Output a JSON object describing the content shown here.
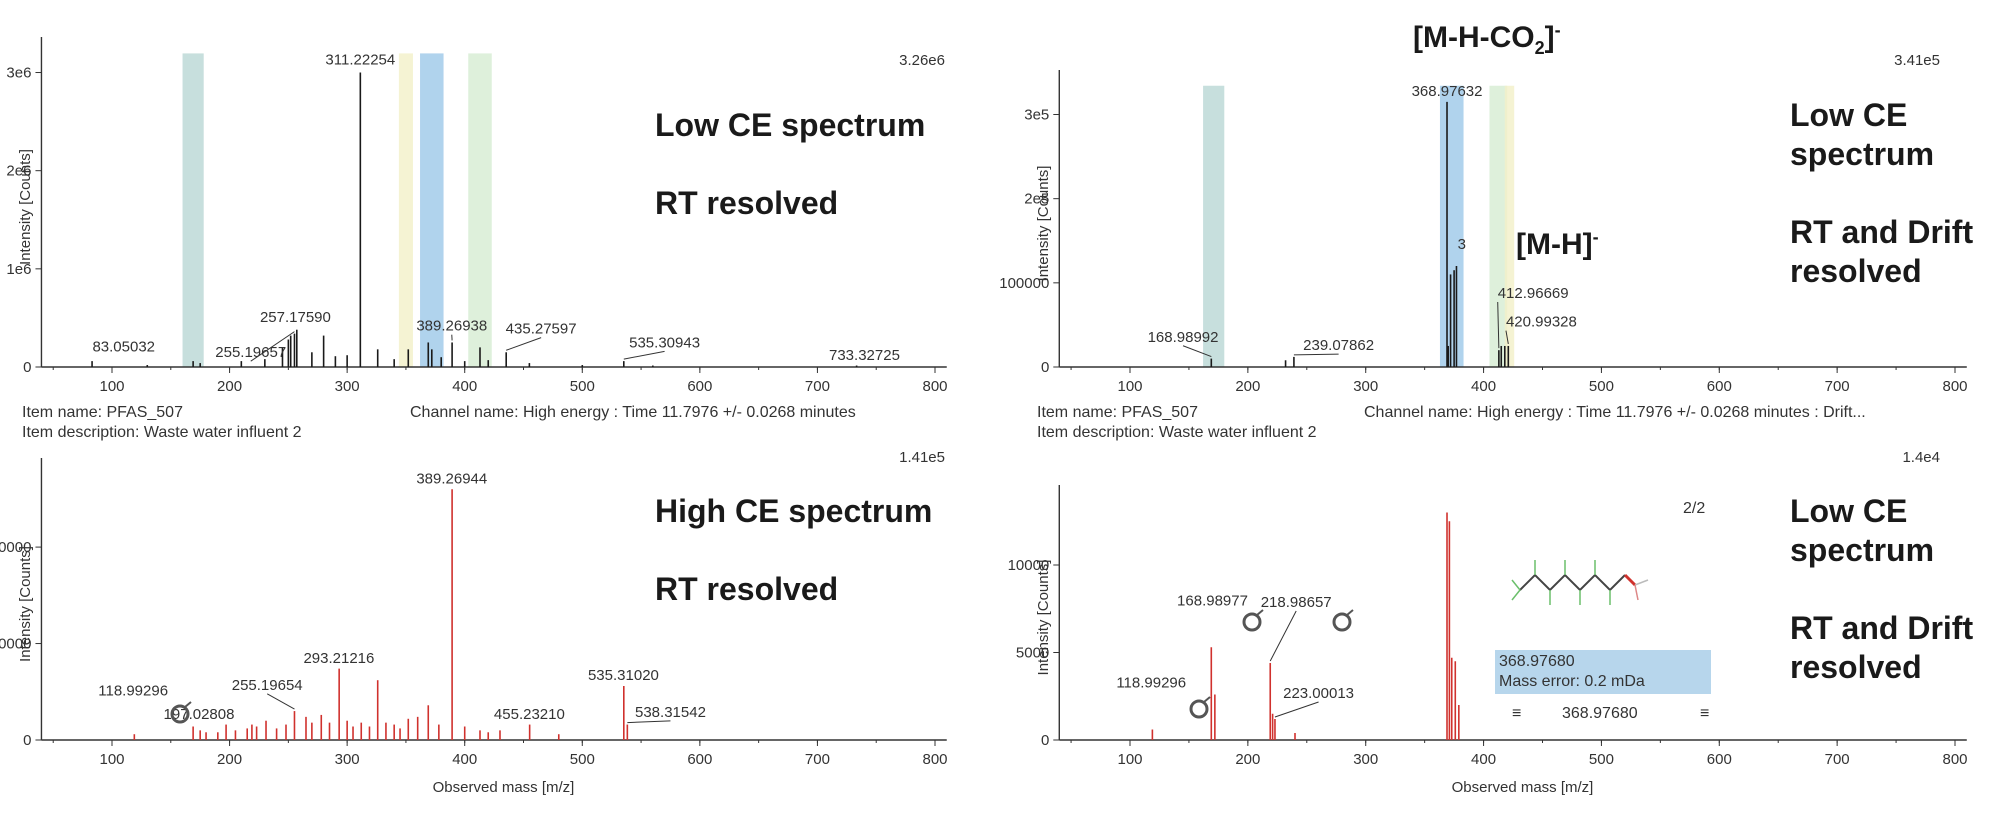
{
  "annotations": {
    "m_h_co2": "[M-H-CO",
    "m_h_co2_sub": "2",
    "m_h_co2_tail": "]",
    "m_h_co2_sup": "-",
    "m_h": "[M-H]",
    "m_h_sup": "-"
  },
  "meta": {
    "left_item_name": "Item name: PFAS_507",
    "left_item_description": "Item description: Waste water influent 2",
    "left_channel": "Channel name: High energy : Time 11.7976 +/- 0.0268 minutes",
    "right_item_name": "Item name: PFAS_507",
    "right_item_description": "Item description: Waste water influent 2",
    "right_channel": "Channel name: High energy : Time 11.7976 +/- 0.0268 minutes : Drift..."
  },
  "tooltip": {
    "mass": "368.97680",
    "mass_error": "Mass error: 0.2 mDa",
    "selected": "368.97680",
    "page": "2/2"
  },
  "colors": {
    "low_ce": "#1a1a1a",
    "high_ce": "#d0312d",
    "highlight_blue": "#9cc8e8",
    "highlight_green": "#d6ecd2",
    "highlight_teal": "#b9d7d4"
  },
  "chart_data": [
    {
      "id": "tl",
      "type": "bar",
      "overlay": [
        "Low CE spectrum",
        "",
        "RT resolved"
      ],
      "ylabel": "Intensity [Counts]",
      "scale_label": "3.26e6",
      "xlim": [
        40,
        810
      ],
      "ylim": [
        0,
        3260000
      ],
      "xticks": [
        100,
        200,
        300,
        400,
        500,
        600,
        700,
        800
      ],
      "yticks": [
        {
          "v": 0,
          "t": "0"
        },
        {
          "v": 1000000,
          "t": "1e6"
        },
        {
          "v": 2000000,
          "t": "2e6"
        },
        {
          "v": 3000000,
          "t": "3e6"
        }
      ],
      "highlights": [
        {
          "x0": 160,
          "x1": 178,
          "color": "#b9d7d4"
        },
        {
          "x0": 344,
          "x1": 356,
          "color": "#f3f0c8"
        },
        {
          "x0": 362,
          "x1": 382,
          "color": "#9cc8e8"
        },
        {
          "x0": 403,
          "x1": 423,
          "color": "#d6ecd2"
        }
      ],
      "peaks": [
        [
          83.05,
          60000
        ],
        [
          130,
          20000
        ],
        [
          169,
          60000
        ],
        [
          175,
          40000
        ],
        [
          210,
          60000
        ],
        [
          230,
          80000
        ],
        [
          245,
          200000
        ],
        [
          250,
          280000
        ],
        [
          252,
          320000
        ],
        [
          255.2,
          340000
        ],
        [
          257.18,
          380000
        ],
        [
          270,
          150000
        ],
        [
          280,
          320000
        ],
        [
          290,
          110000
        ],
        [
          300,
          120000
        ],
        [
          311.22,
          3000000
        ],
        [
          326,
          180000
        ],
        [
          340,
          80000
        ],
        [
          352,
          180000
        ],
        [
          369,
          250000
        ],
        [
          372,
          180000
        ],
        [
          380,
          100000
        ],
        [
          389.27,
          250000
        ],
        [
          400,
          60000
        ],
        [
          413,
          200000
        ],
        [
          420,
          70000
        ],
        [
          435.28,
          150000
        ],
        [
          455,
          40000
        ],
        [
          500,
          20000
        ],
        [
          535.31,
          60000
        ],
        [
          560,
          15000
        ],
        [
          733.33,
          15000
        ]
      ],
      "labels": [
        {
          "text": "311.22254",
          "x": 311.22,
          "y": 3000000,
          "lx": 311.22,
          "ly": 3080000,
          "anchor": "middle"
        },
        {
          "text": "257.17590",
          "x": 257.18,
          "y": 380000,
          "lx": 256,
          "ly": 460000,
          "anchor": "middle"
        },
        {
          "text": "83.05032",
          "x": 83.05,
          "y": 60000,
          "lx": 110,
          "ly": 160000,
          "anchor": "middle"
        },
        {
          "text": "255.19657",
          "x": 255.2,
          "y": 340000,
          "lx": 218,
          "ly": 100000,
          "anchor": "middle",
          "leader": true
        },
        {
          "text": "389.26938",
          "x": 389.27,
          "y": 250000,
          "lx": 389,
          "ly": 370000,
          "anchor": "middle",
          "leader": true
        },
        {
          "text": "435.27597",
          "x": 435.28,
          "y": 150000,
          "lx": 465,
          "ly": 340000,
          "anchor": "middle",
          "leader": true
        },
        {
          "text": "535.30943",
          "x": 535.31,
          "y": 60000,
          "lx": 570,
          "ly": 200000,
          "anchor": "middle",
          "leader": true
        },
        {
          "text": "733.32725",
          "x": 733.33,
          "y": 15000,
          "lx": 740,
          "ly": 70000,
          "anchor": "middle"
        }
      ]
    },
    {
      "id": "tr",
      "type": "bar",
      "overlay": [
        "Low CE",
        "spectrum",
        "",
        "RT and Drift",
        "resolved"
      ],
      "ylabel": "Intensity [Counts]",
      "scale_label": "3.41e5",
      "xlim": [
        40,
        810
      ],
      "ylim": [
        0,
        341000
      ],
      "xticks": [
        100,
        200,
        300,
        400,
        500,
        600,
        700,
        800
      ],
      "yticks": [
        {
          "v": 0,
          "t": "0"
        },
        {
          "v": 100000,
          "t": "100000"
        },
        {
          "v": 200000,
          "t": "2e5"
        },
        {
          "v": 300000,
          "t": "3e5"
        }
      ],
      "highlights": [
        {
          "x0": 162,
          "x1": 180,
          "color": "#b9d7d4"
        },
        {
          "x0": 363,
          "x1": 383,
          "color": "#9cc8e8"
        },
        {
          "x0": 405,
          "x1": 420,
          "color": "#d6ecd2"
        },
        {
          "x0": 418,
          "x1": 426,
          "color": "#f3f0c8"
        }
      ],
      "peaks": [
        [
          168.99,
          10000
        ],
        [
          232,
          8000
        ],
        [
          239.08,
          12000
        ],
        [
          368.98,
          315000
        ],
        [
          370,
          25000
        ],
        [
          372,
          110000
        ],
        [
          375,
          115000
        ],
        [
          377,
          120000
        ],
        [
          412.97,
          20000
        ],
        [
          415,
          25000
        ],
        [
          418,
          25000
        ],
        [
          420.99,
          25000
        ]
      ],
      "labels": [
        {
          "text": "368.97632",
          "x": 368.98,
          "y": 315000,
          "lx": 369,
          "ly": 322000,
          "anchor": "middle"
        },
        {
          "text": "3",
          "x": 377,
          "y": 120000,
          "lx": 378,
          "ly": 140000,
          "anchor": "start"
        },
        {
          "text": "412.96669",
          "x": 412.97,
          "y": 20000,
          "lx": 412,
          "ly": 82000,
          "anchor": "start",
          "leader": true
        },
        {
          "text": "420.99328",
          "x": 420.99,
          "y": 25000,
          "lx": 419,
          "ly": 48000,
          "anchor": "start",
          "leader": true
        },
        {
          "text": "168.98992",
          "x": 168.99,
          "y": 10000,
          "lx": 145,
          "ly": 30000,
          "anchor": "middle",
          "leader": true
        },
        {
          "text": "239.07862",
          "x": 239.08,
          "y": 12000,
          "lx": 277,
          "ly": 20000,
          "anchor": "middle",
          "leader": true
        }
      ]
    },
    {
      "id": "bl",
      "type": "bar",
      "overlay": [
        "High CE spectrum",
        "",
        "RT resolved"
      ],
      "ylabel": "Intensity [Counts]",
      "xlabel": "Observed mass [m/z]",
      "scale_label": "1.41e5",
      "xlim": [
        40,
        810
      ],
      "ylim": [
        0,
        141000
      ],
      "xticks": [
        100,
        200,
        300,
        400,
        500,
        600,
        700,
        800
      ],
      "yticks": [
        {
          "v": 0,
          "t": "0"
        },
        {
          "v": 50000,
          "t": "50000"
        },
        {
          "v": 100000,
          "t": "100000"
        }
      ],
      "highlights": [],
      "peaks": [
        [
          118.99,
          3000
        ],
        [
          169,
          7000
        ],
        [
          175,
          5000
        ],
        [
          180,
          4000
        ],
        [
          190,
          4000
        ],
        [
          197.03,
          8000
        ],
        [
          205,
          5000
        ],
        [
          215,
          6000
        ],
        [
          219,
          8000
        ],
        [
          223,
          7000
        ],
        [
          231,
          10000
        ],
        [
          240,
          6000
        ],
        [
          248,
          8000
        ],
        [
          255.2,
          15000
        ],
        [
          265,
          12000
        ],
        [
          270,
          9000
        ],
        [
          278,
          13000
        ],
        [
          285,
          9000
        ],
        [
          293.21,
          37000
        ],
        [
          300,
          10000
        ],
        [
          305,
          7000
        ],
        [
          312,
          9000
        ],
        [
          319,
          7000
        ],
        [
          326,
          31000
        ],
        [
          333,
          9000
        ],
        [
          340,
          8000
        ],
        [
          345,
          6000
        ],
        [
          352,
          11000
        ],
        [
          360,
          12000
        ],
        [
          369,
          18000
        ],
        [
          378,
          8000
        ],
        [
          389.27,
          130000
        ],
        [
          400,
          7000
        ],
        [
          413,
          5000
        ],
        [
          420,
          4000
        ],
        [
          430,
          5000
        ],
        [
          455.23,
          8000
        ],
        [
          480,
          3000
        ],
        [
          535.31,
          28000
        ],
        [
          538.32,
          8000
        ]
      ],
      "labels": [
        {
          "text": "389.26944",
          "x": 389.27,
          "y": 130000,
          "lx": 389,
          "ly": 133000,
          "anchor": "middle"
        },
        {
          "text": "293.21216",
          "x": 293.21,
          "y": 37000,
          "lx": 293,
          "ly": 40000,
          "anchor": "middle"
        },
        {
          "text": "255.19654",
          "x": 255.2,
          "y": 15000,
          "lx": 232,
          "ly": 26000,
          "anchor": "middle",
          "leader": true
        },
        {
          "text": "197.02808",
          "x": 197.03,
          "y": 8000,
          "lx": 174,
          "ly": 11000,
          "anchor": "middle"
        },
        {
          "text": "118.99296",
          "x": 118.99,
          "y": 3000,
          "lx": 118,
          "ly": 23000,
          "anchor": "middle"
        },
        {
          "text": "535.31020",
          "x": 535.31,
          "y": 28000,
          "lx": 535,
          "ly": 31000,
          "anchor": "middle"
        },
        {
          "text": "455.23210",
          "x": 455.23,
          "y": 8000,
          "lx": 455,
          "ly": 11000,
          "anchor": "middle"
        },
        {
          "text": "538.31542",
          "x": 538.32,
          "y": 8000,
          "lx": 575,
          "ly": 12000,
          "anchor": "middle",
          "leader": true
        }
      ]
    },
    {
      "id": "br",
      "type": "bar",
      "overlay": [
        "Low CE",
        "spectrum",
        "",
        "RT and Drift",
        "resolved"
      ],
      "ylabel": "Intensity [Counts]",
      "xlabel": "Observed mass [m/z]",
      "scale_label": "1.4e4",
      "xlim": [
        40,
        810
      ],
      "ylim": [
        0,
        14000
      ],
      "xticks": [
        100,
        200,
        300,
        400,
        500,
        600,
        700,
        800
      ],
      "yticks": [
        {
          "v": 0,
          "t": "0"
        },
        {
          "v": 5000,
          "t": "5000"
        },
        {
          "v": 10000,
          "t": "10000"
        }
      ],
      "highlights": [],
      "peaks": [
        [
          118.99,
          600
        ],
        [
          168.98,
          5300
        ],
        [
          172,
          2600
        ],
        [
          218.99,
          4400
        ],
        [
          221,
          1500
        ],
        [
          223,
          1200
        ],
        [
          240,
          400
        ],
        [
          368.98,
          13000
        ],
        [
          371,
          12500
        ],
        [
          373,
          4700
        ],
        [
          376,
          4500
        ],
        [
          379,
          2000
        ]
      ],
      "labels": [
        {
          "text": "168.98977",
          "x": 168.98,
          "y": 5300,
          "lx": 170,
          "ly": 7700,
          "anchor": "middle"
        },
        {
          "text": "218.98657",
          "x": 218.99,
          "y": 4400,
          "lx": 241,
          "ly": 7600,
          "anchor": "middle",
          "leader": true
        },
        {
          "text": "118.99296",
          "x": 118.99,
          "y": 600,
          "lx": 118,
          "ly": 3000,
          "anchor": "middle"
        },
        {
          "text": "223.00013",
          "x": 223,
          "y": 1200,
          "lx": 260,
          "ly": 2400,
          "anchor": "middle",
          "leader": true
        }
      ]
    }
  ]
}
